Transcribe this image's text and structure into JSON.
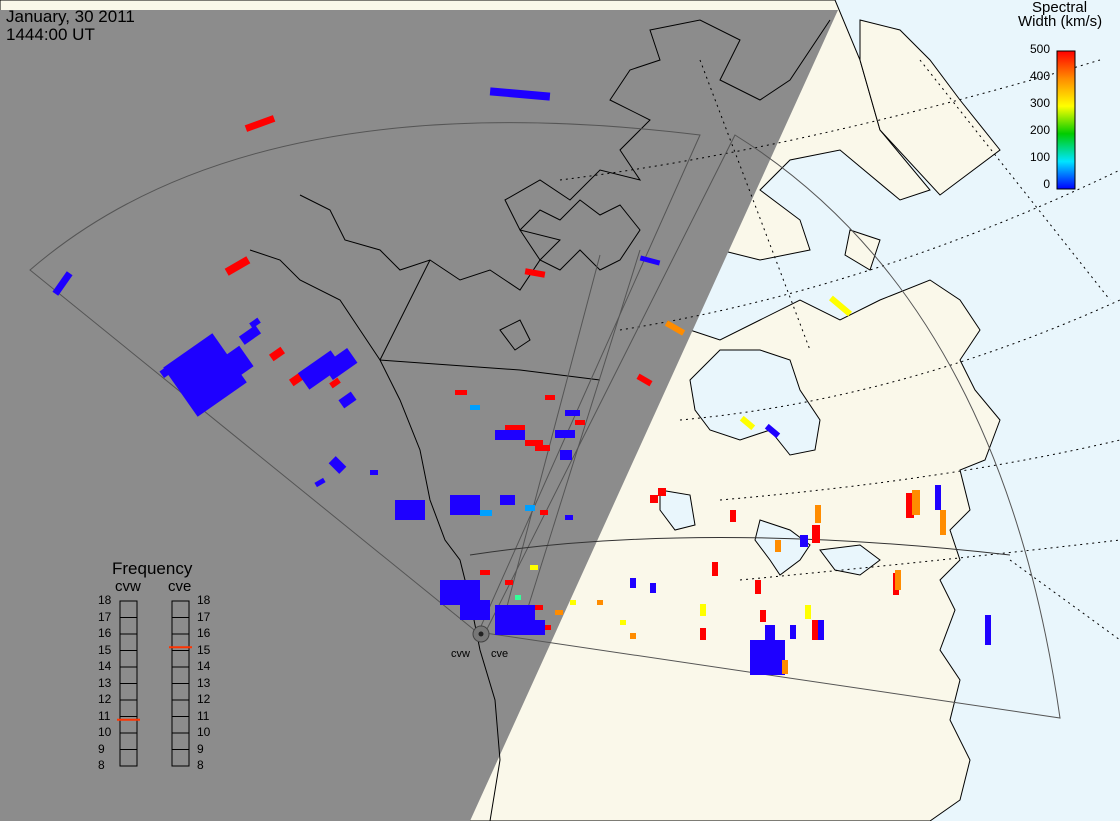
{
  "header": {
    "date": "January, 30 2011",
    "time": "1444:00 UT"
  },
  "colorbar": {
    "title_line1": "Spectral",
    "title_line2": "Width (km/s)",
    "ticks": [
      "500",
      "400",
      "300",
      "200",
      "100",
      "0"
    ],
    "gradient": [
      "#ff0000",
      "#ff8c00",
      "#ffff00",
      "#00cc00",
      "#00e5ff",
      "#0000ff"
    ]
  },
  "frequency": {
    "title": "Frequency",
    "col_left": "cvw",
    "col_right": "cve",
    "values": [
      "18",
      "17",
      "16",
      "15",
      "14",
      "13",
      "12",
      "11",
      "10",
      "9",
      "8"
    ],
    "cvw_marker": 10.8,
    "cve_marker": 15.2
  },
  "radars": {
    "west_label": "cvw",
    "east_label": "cve"
  },
  "colors": {
    "night_shade": "#8c8c8c",
    "ocean": "#e9f6fc",
    "land": "#faf8ea",
    "low_width": "#1e00ff",
    "high_width": "#ff0000"
  }
}
